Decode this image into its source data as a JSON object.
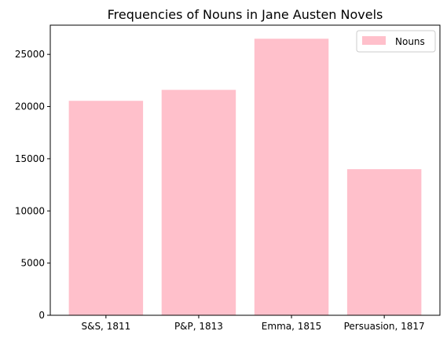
{
  "chart_data": {
    "type": "bar",
    "title": "Frequencies of Nouns in Jane Austen Novels",
    "xlabel": "",
    "ylabel": "",
    "categories": [
      "S&S, 1811",
      "P&P, 1813",
      "Emma, 1815",
      "Persuasion, 1817"
    ],
    "series": [
      {
        "name": "Nouns",
        "values": [
          20550,
          21600,
          26500,
          14000
        ]
      }
    ],
    "ylim": [
      0,
      27800
    ],
    "yticks": [
      0,
      5000,
      10000,
      15000,
      20000,
      25000
    ],
    "ytick_labels": [
      "0",
      "5000",
      "10000",
      "15000",
      "20000",
      "25000"
    ],
    "bar_color": "#ffc0cb",
    "grid": false,
    "legend_position": "top-right"
  }
}
